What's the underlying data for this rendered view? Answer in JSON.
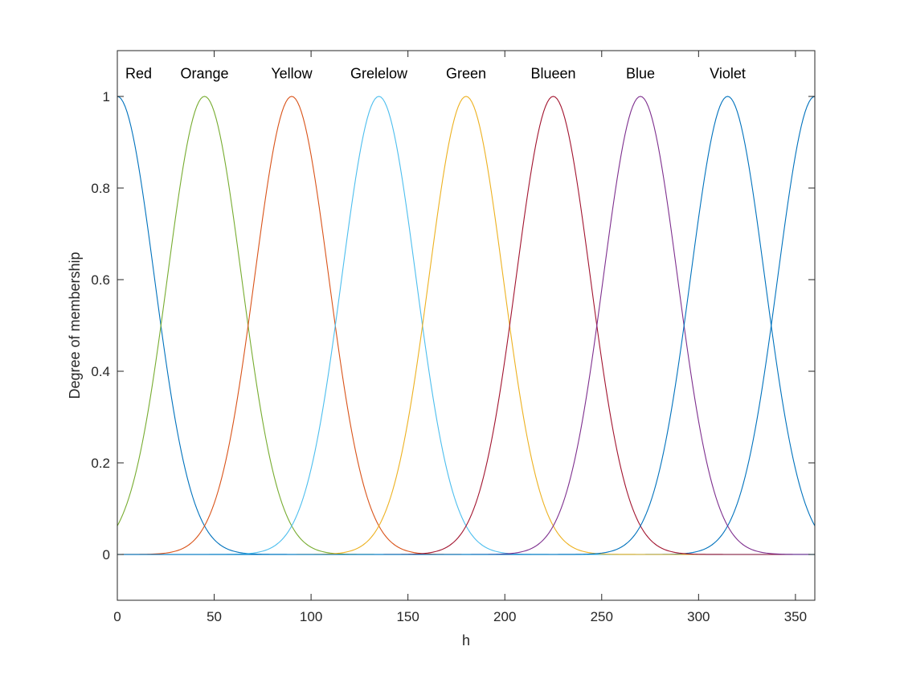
{
  "chart_data": {
    "type": "line",
    "title": "",
    "xlabel": "h",
    "ylabel": "Degree of membership",
    "xlim": [
      0,
      360
    ],
    "ylim": [
      -0.1,
      1.1
    ],
    "xticks": [
      0,
      50,
      100,
      150,
      200,
      250,
      300,
      350
    ],
    "yticks": [
      0,
      0.2,
      0.4,
      0.6,
      0.8,
      1
    ],
    "ytick_labels": [
      "0",
      "0.2",
      "0.4",
      "0.6",
      "0.8",
      "1"
    ],
    "grid": false,
    "curve_shape": "gaussian",
    "x_step": 1,
    "series": [
      {
        "name": "Red",
        "center": 0,
        "sigma": 19.1,
        "color": "#0072BD",
        "periodic": true
      },
      {
        "name": "Orange",
        "center": 45,
        "sigma": 19.1,
        "color": "#77AC30"
      },
      {
        "name": "Yellow",
        "center": 90,
        "sigma": 19.1,
        "color": "#D95319"
      },
      {
        "name": "Grelelow",
        "center": 135,
        "sigma": 19.1,
        "color": "#4DBEEE"
      },
      {
        "name": "Green",
        "center": 180,
        "sigma": 19.1,
        "color": "#EDB120"
      },
      {
        "name": "Blueen",
        "center": 225,
        "sigma": 19.1,
        "color": "#A2142F"
      },
      {
        "name": "Blue",
        "center": 270,
        "sigma": 19.1,
        "color": "#7E2F8E"
      },
      {
        "name": "Violet",
        "center": 315,
        "sigma": 19.1,
        "color": "#0072BD"
      }
    ],
    "baseline": {
      "y": 0,
      "color": "#4DBEEE"
    },
    "label_positions": [
      {
        "text": "Red",
        "x": 11,
        "y": 1.05
      },
      {
        "text": "Orange",
        "x": 45,
        "y": 1.05
      },
      {
        "text": "Yellow",
        "x": 90,
        "y": 1.05
      },
      {
        "text": "Grelelow",
        "x": 135,
        "y": 1.05
      },
      {
        "text": "Green",
        "x": 180,
        "y": 1.05
      },
      {
        "text": "Blueen",
        "x": 225,
        "y": 1.05
      },
      {
        "text": "Blue",
        "x": 270,
        "y": 1.05
      },
      {
        "text": "Violet",
        "x": 315,
        "y": 1.05
      }
    ]
  }
}
